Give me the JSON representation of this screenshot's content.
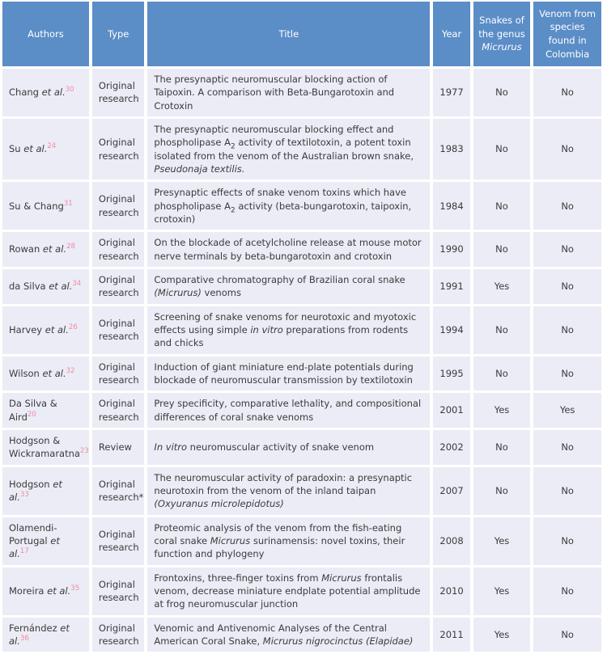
{
  "colors": {
    "header_bg": "#5b8dc7",
    "header_text": "#ffffff",
    "cell_bg": "#ebecf5",
    "body_text": "#3b3b3c",
    "reference_link": "#f08ca2",
    "grid": "#ffffff"
  },
  "table": {
    "header": [
      {
        "id": "authors",
        "segments": [
          {
            "t": "Authors"
          }
        ]
      },
      {
        "id": "type",
        "segments": [
          {
            "t": "Type"
          }
        ]
      },
      {
        "id": "title",
        "segments": [
          {
            "t": "Title"
          }
        ]
      },
      {
        "id": "year",
        "segments": [
          {
            "t": "Year"
          }
        ]
      },
      {
        "id": "micrurus",
        "segments": [
          {
            "t": "Snakes of the genus "
          },
          {
            "t": "Micrurus",
            "s": "i"
          }
        ]
      },
      {
        "id": "colombia",
        "segments": [
          {
            "t": "Venom from species found in Colombia"
          }
        ]
      }
    ],
    "rows": [
      {
        "authors": [
          {
            "t": "Chang "
          },
          {
            "t": "et al.",
            "s": "i"
          },
          {
            "t": "30",
            "s": "sup"
          }
        ],
        "type": "Original research",
        "title": [
          {
            "t": "The presynaptic neuromuscular blocking action of Taipoxin. A comparison with Beta-Bungarotoxin and Crotoxin"
          }
        ],
        "year": "1977",
        "micrurus": "No",
        "colombia": "No"
      },
      {
        "authors": [
          {
            "t": "Su "
          },
          {
            "t": "et al.",
            "s": "i"
          },
          {
            "t": "24",
            "s": "sup"
          }
        ],
        "type": "Original research",
        "title": [
          {
            "t": "The presynaptic neuromuscular blocking effect and phospholipase A"
          },
          {
            "t": "2",
            "s": "sub"
          },
          {
            "t": " activity of textilotoxin, a potent toxin isolated from the venom of the Australian brown snake, "
          },
          {
            "t": "Pseudonaja textilis.",
            "s": "i"
          }
        ],
        "year": "1983",
        "micrurus": "No",
        "colombia": "No"
      },
      {
        "authors": [
          {
            "t": "Su & Chang"
          },
          {
            "t": "31",
            "s": "sup"
          }
        ],
        "type": "Original research",
        "title": [
          {
            "t": "Presynaptic effects of snake venom toxins which have phospholipase A"
          },
          {
            "t": "2",
            "s": "sub"
          },
          {
            "t": " activity (beta-bungarotoxin, taipoxin, crotoxin)"
          }
        ],
        "year": "1984",
        "micrurus": "No",
        "colombia": "No"
      },
      {
        "authors": [
          {
            "t": "Rowan "
          },
          {
            "t": "et al.",
            "s": "i"
          },
          {
            "t": "28",
            "s": "sup"
          }
        ],
        "type": "Original research",
        "title": [
          {
            "t": "On the blockade of acetylcholine release at mouse motor nerve terminals by beta-bungarotoxin and crotoxin"
          }
        ],
        "year": "1990",
        "micrurus": "No",
        "colombia": "No"
      },
      {
        "authors": [
          {
            "t": "da Silva "
          },
          {
            "t": "et al.",
            "s": "i"
          },
          {
            "t": "34",
            "s": "sup"
          }
        ],
        "type": "Original research",
        "title": [
          {
            "t": "Comparative chromatography of Brazilian coral snake "
          },
          {
            "t": "(Micrurus)",
            "s": "i"
          },
          {
            "t": " venoms"
          }
        ],
        "year": "1991",
        "micrurus": "Yes",
        "colombia": "No"
      },
      {
        "authors": [
          {
            "t": "Harvey "
          },
          {
            "t": "et al.",
            "s": "i"
          },
          {
            "t": "26",
            "s": "sup"
          }
        ],
        "type": "Original research",
        "title": [
          {
            "t": "Screening of snake venoms for neurotoxic and myotoxic effects using simple "
          },
          {
            "t": "in vitro",
            "s": "i"
          },
          {
            "t": " preparations from rodents and chicks"
          }
        ],
        "year": "1994",
        "micrurus": "No",
        "colombia": "No"
      },
      {
        "authors": [
          {
            "t": "Wilson "
          },
          {
            "t": "et al.",
            "s": "i"
          },
          {
            "t": "32",
            "s": "sup"
          }
        ],
        "type": "Original research",
        "title": [
          {
            "t": "Induction of giant miniature end-plate potentials during blockade of neuromuscular transmission by textilotoxin"
          }
        ],
        "year": "1995",
        "micrurus": "No",
        "colombia": "No"
      },
      {
        "authors": [
          {
            "t": "Da Silva & Aird"
          },
          {
            "t": "20",
            "s": "sup"
          }
        ],
        "type": "Original research",
        "title": [
          {
            "t": "Prey specificity, comparative lethality, and compositional differences of coral snake venoms"
          }
        ],
        "year": "2001",
        "micrurus": "Yes",
        "colombia": "Yes"
      },
      {
        "authors": [
          {
            "t": "Hodgson & Wickramaratna"
          },
          {
            "t": "23",
            "s": "sup"
          }
        ],
        "type": "Review",
        "title": [
          {
            "t": "In vitro",
            "s": "i"
          },
          {
            "t": " neuromuscular activity of snake venom"
          }
        ],
        "year": "2002",
        "micrurus": "No",
        "colombia": "No"
      },
      {
        "authors": [
          {
            "t": "Hodgson "
          },
          {
            "t": "et al.",
            "s": "i"
          },
          {
            "t": "33",
            "s": "sup"
          }
        ],
        "type": "Original research*",
        "title": [
          {
            "t": "The neuromuscular activity of paradoxin: a presynaptic neurotoxin from the venom of the inland taipan "
          },
          {
            "t": "(Oxyuranus microlepidotus)",
            "s": "i"
          }
        ],
        "year": "2007",
        "micrurus": "No",
        "colombia": "No"
      },
      {
        "authors": [
          {
            "t": "Olamendi-Portugal "
          },
          {
            "t": "et al.",
            "s": "i"
          },
          {
            "t": "17",
            "s": "sup"
          }
        ],
        "type": "Original research",
        "title": [
          {
            "t": "Proteomic analysis of the venom from the fish-eating coral snake "
          },
          {
            "t": "Micrurus",
            "s": "i"
          },
          {
            "t": " surinamensis: novel toxins, their function and phylogeny"
          }
        ],
        "year": "2008",
        "micrurus": "Yes",
        "colombia": "No"
      },
      {
        "authors": [
          {
            "t": "Moreira "
          },
          {
            "t": "et al.",
            "s": "i"
          },
          {
            "t": "35",
            "s": "sup"
          }
        ],
        "type": "Original research",
        "title": [
          {
            "t": "Frontoxins, three-finger toxins from "
          },
          {
            "t": "Micrurus",
            "s": "i"
          },
          {
            "t": " frontalis venom, decrease miniature endplate potential amplitude at frog neuromuscular junction"
          }
        ],
        "year": "2010",
        "micrurus": "Yes",
        "colombia": "No"
      },
      {
        "authors": [
          {
            "t": "Fernández "
          },
          {
            "t": "et al.",
            "s": "i"
          },
          {
            "t": "36",
            "s": "sup"
          }
        ],
        "type": "Original research",
        "title": [
          {
            "t": "Venomic and Antivenomic Analyses of the Central American Coral Snake, "
          },
          {
            "t": "Micrurus nigrocinctus (Elapidae)",
            "s": "i"
          }
        ],
        "year": "2011",
        "micrurus": "Yes",
        "colombia": "No"
      }
    ]
  }
}
